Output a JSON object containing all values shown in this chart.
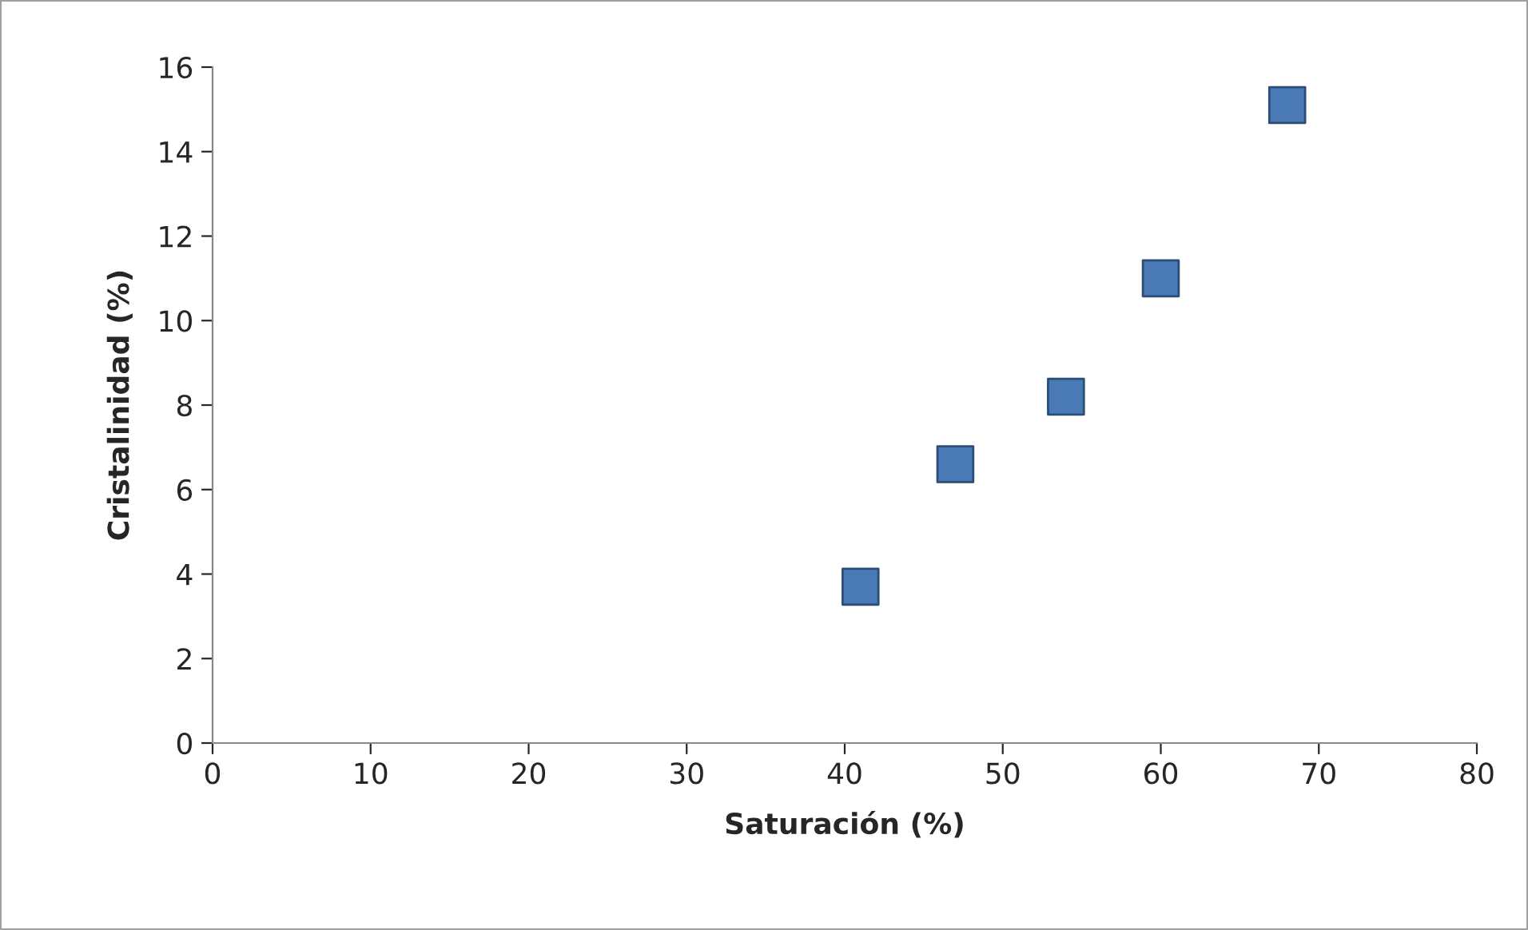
{
  "chart_data": {
    "type": "scatter",
    "xlabel": "Saturación (%)",
    "ylabel": "Cristalinidad (%)",
    "x": [
      41,
      47,
      54,
      60,
      68
    ],
    "values": [
      3.7,
      6.6,
      8.2,
      11.0,
      15.1
    ],
    "color": "#4a7ab5",
    "xlim": [
      0,
      80
    ],
    "xticks": [
      0,
      10,
      20,
      30,
      40,
      50,
      60,
      70,
      80
    ],
    "ylim": [
      0,
      16
    ],
    "yticks": [
      0,
      2,
      4,
      6,
      8,
      10,
      12,
      14,
      16
    ],
    "marker": "square",
    "grid": false,
    "legend": false
  }
}
